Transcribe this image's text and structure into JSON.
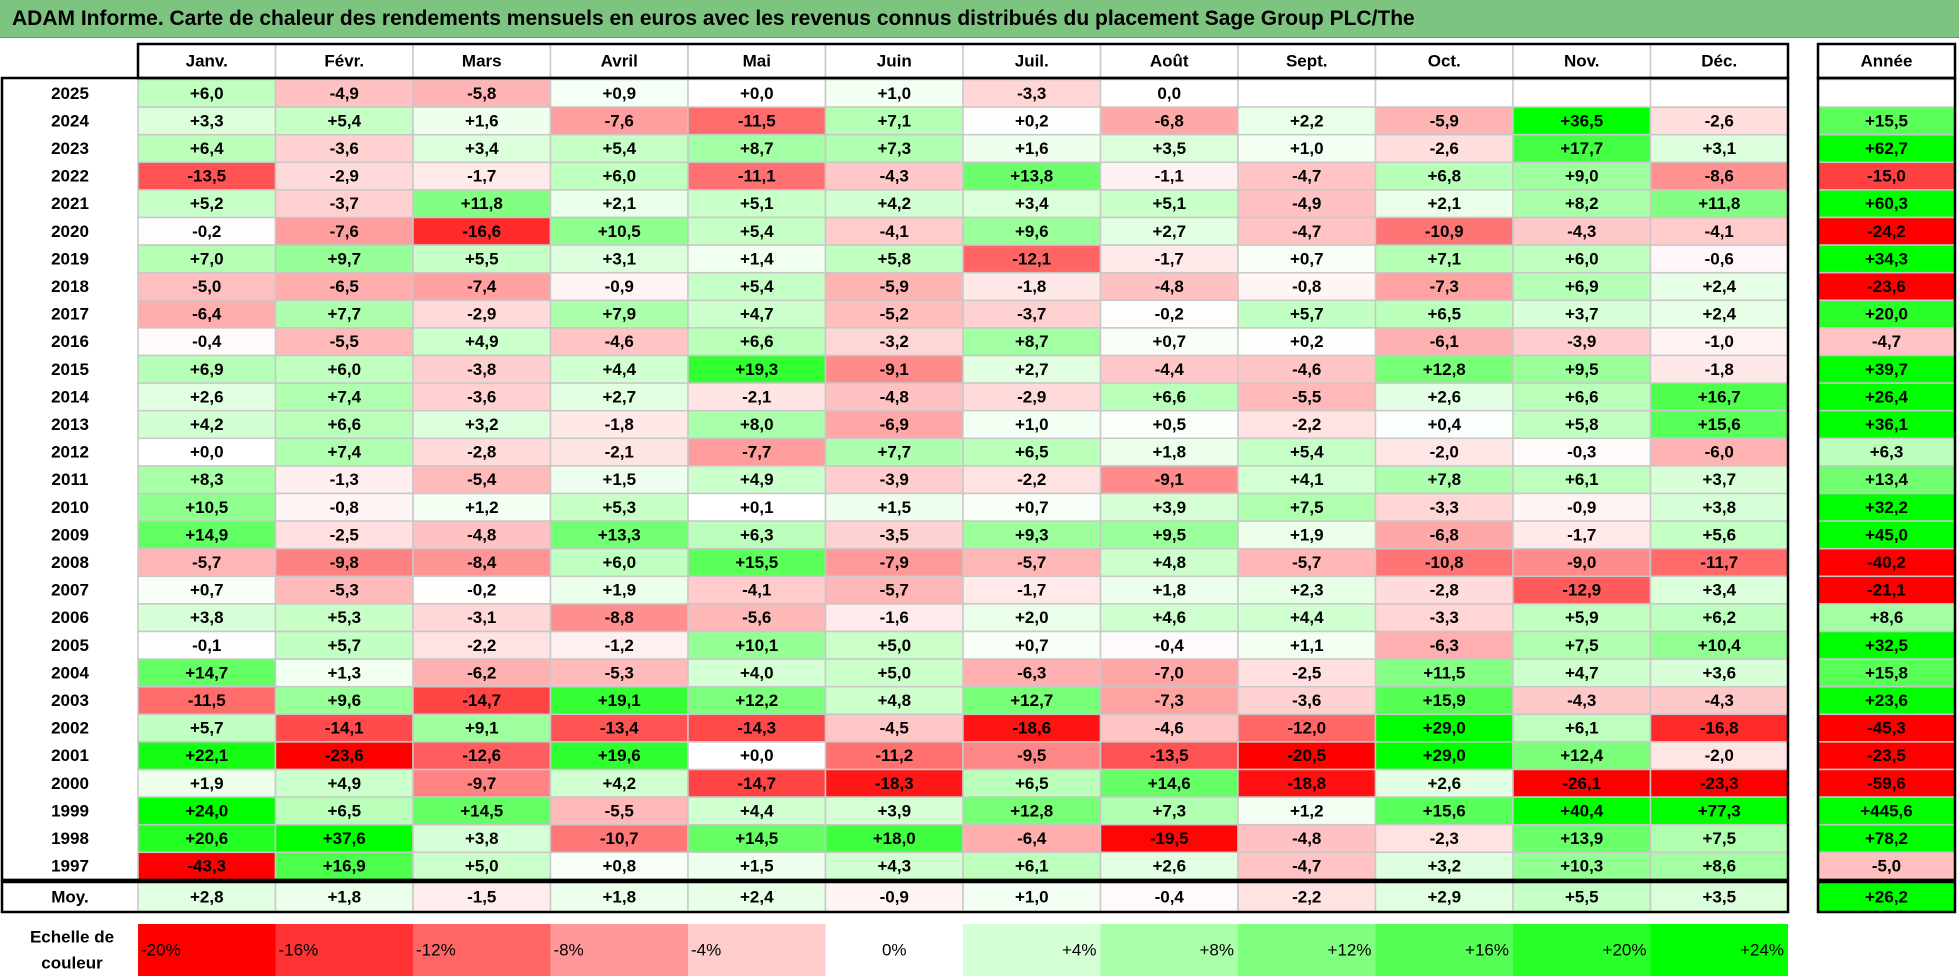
{
  "title": "ADAM Informe. Carte de chaleur des rendements mensuels en euros avec les revenus connus distribués du placement Sage Group PLC/The",
  "chart_data": {
    "type": "heatmap",
    "title": "ADAM Informe. Carte de chaleur des rendements mensuels en euros avec les revenus connus distribués du placement Sage Group PLC/The",
    "columns": [
      "Janv.",
      "Févr.",
      "Mars",
      "Avril",
      "Mai",
      "Juin",
      "Juil.",
      "Août",
      "Sept.",
      "Oct.",
      "Nov.",
      "Déc."
    ],
    "year_column_label": "Année",
    "rows": [
      {
        "year": "2025",
        "values": [
          6.0,
          -4.9,
          -5.8,
          0.9,
          0.0,
          1.0,
          -3.3,
          0.0,
          null,
          null,
          null,
          null
        ],
        "annual": null
      },
      {
        "year": "2024",
        "values": [
          3.3,
          5.4,
          1.6,
          -7.6,
          -11.5,
          7.1,
          0.2,
          -6.8,
          2.2,
          -5.9,
          36.5,
          -2.6
        ],
        "annual": 15.5
      },
      {
        "year": "2023",
        "values": [
          6.4,
          -3.6,
          3.4,
          5.4,
          8.7,
          7.3,
          1.6,
          3.5,
          1.0,
          -2.6,
          17.7,
          3.1
        ],
        "annual": 62.7
      },
      {
        "year": "2022",
        "values": [
          -13.5,
          -2.9,
          -1.7,
          6.0,
          -11.1,
          -4.3,
          13.8,
          -1.1,
          -4.7,
          6.8,
          9.0,
          -8.6
        ],
        "annual": -15.0
      },
      {
        "year": "2021",
        "values": [
          5.2,
          -3.7,
          11.8,
          2.1,
          5.1,
          4.2,
          3.4,
          5.1,
          -4.9,
          2.1,
          8.2,
          11.8
        ],
        "annual": 60.3
      },
      {
        "year": "2020",
        "values": [
          -0.2,
          -7.6,
          -16.6,
          10.5,
          5.4,
          -4.1,
          9.6,
          2.7,
          -4.7,
          -10.9,
          -4.3,
          -4.1
        ],
        "annual": -24.2
      },
      {
        "year": "2019",
        "values": [
          7.0,
          9.7,
          5.5,
          3.1,
          1.4,
          5.8,
          -12.1,
          -1.7,
          0.7,
          7.1,
          6.0,
          -0.6
        ],
        "annual": 34.3
      },
      {
        "year": "2018",
        "values": [
          -5.0,
          -6.5,
          -7.4,
          -0.9,
          5.4,
          -5.9,
          -1.8,
          -4.8,
          -0.8,
          -7.3,
          6.9,
          2.4
        ],
        "annual": -23.6
      },
      {
        "year": "2017",
        "values": [
          -6.4,
          7.7,
          -2.9,
          7.9,
          4.7,
          -5.2,
          -3.7,
          -0.2,
          5.7,
          6.5,
          3.7,
          2.4
        ],
        "annual": 20.0
      },
      {
        "year": "2016",
        "values": [
          -0.4,
          -5.5,
          4.9,
          -4.6,
          6.6,
          -3.2,
          8.7,
          0.7,
          0.2,
          -6.1,
          -3.9,
          -1.0
        ],
        "annual": -4.7
      },
      {
        "year": "2015",
        "values": [
          6.9,
          6.0,
          -3.8,
          4.4,
          19.3,
          -9.1,
          2.7,
          -4.4,
          -4.6,
          12.8,
          9.5,
          -1.8
        ],
        "annual": 39.7
      },
      {
        "year": "2014",
        "values": [
          2.6,
          7.4,
          -3.6,
          2.7,
          -2.1,
          -4.8,
          -2.9,
          6.6,
          -5.5,
          2.6,
          6.6,
          16.7
        ],
        "annual": 26.4
      },
      {
        "year": "2013",
        "values": [
          4.2,
          6.6,
          3.2,
          -1.8,
          8.0,
          -6.9,
          1.0,
          0.5,
          -2.2,
          0.4,
          5.8,
          15.6
        ],
        "annual": 36.1
      },
      {
        "year": "2012",
        "values": [
          0.0,
          7.4,
          -2.8,
          -2.1,
          -7.7,
          7.7,
          6.5,
          1.8,
          5.4,
          -2.0,
          -0.3,
          -6.0
        ],
        "annual": 6.3
      },
      {
        "year": "2011",
        "values": [
          8.3,
          -1.3,
          -5.4,
          1.5,
          4.9,
          -3.9,
          -2.2,
          -9.1,
          4.1,
          7.8,
          6.1,
          3.7
        ],
        "annual": 13.4
      },
      {
        "year": "2010",
        "values": [
          10.5,
          -0.8,
          1.2,
          5.3,
          0.1,
          1.5,
          0.7,
          3.9,
          7.5,
          -3.3,
          -0.9,
          3.8
        ],
        "annual": 32.2
      },
      {
        "year": "2009",
        "values": [
          14.9,
          -2.5,
          -4.8,
          13.3,
          6.3,
          -3.5,
          9.3,
          9.5,
          1.9,
          -6.8,
          -1.7,
          5.6
        ],
        "annual": 45.0
      },
      {
        "year": "2008",
        "values": [
          -5.7,
          -9.8,
          -8.4,
          6.0,
          15.5,
          -7.9,
          -5.7,
          4.8,
          -5.7,
          -10.8,
          -9.0,
          -11.7
        ],
        "annual": -40.2
      },
      {
        "year": "2007",
        "values": [
          0.7,
          -5.3,
          -0.2,
          1.9,
          -4.1,
          -5.7,
          -1.7,
          1.8,
          2.3,
          -2.8,
          -12.9,
          3.4
        ],
        "annual": -21.1
      },
      {
        "year": "2006",
        "values": [
          3.8,
          5.3,
          -3.1,
          -8.8,
          -5.6,
          -1.6,
          2.0,
          4.6,
          4.4,
          -3.3,
          5.9,
          6.2
        ],
        "annual": 8.6
      },
      {
        "year": "2005",
        "values": [
          -0.1,
          5.7,
          -2.2,
          -1.2,
          10.1,
          5.0,
          0.7,
          -0.4,
          1.1,
          -6.3,
          7.5,
          10.4
        ],
        "annual": 32.5
      },
      {
        "year": "2004",
        "values": [
          14.7,
          1.3,
          -6.2,
          -5.3,
          4.0,
          5.0,
          -6.3,
          -7.0,
          -2.5,
          11.5,
          4.7,
          3.6
        ],
        "annual": 15.8
      },
      {
        "year": "2003",
        "values": [
          -11.5,
          9.6,
          -14.7,
          19.1,
          12.2,
          4.8,
          12.7,
          -7.3,
          -3.6,
          15.9,
          -4.3,
          -4.3
        ],
        "annual": 23.6
      },
      {
        "year": "2002",
        "values": [
          5.7,
          -14.1,
          9.1,
          -13.4,
          -14.3,
          -4.5,
          -18.6,
          -4.6,
          -12.0,
          29.0,
          6.1,
          -16.8
        ],
        "annual": -45.3
      },
      {
        "year": "2001",
        "values": [
          22.1,
          -23.6,
          -12.6,
          19.6,
          0.0,
          -11.2,
          -9.5,
          -13.5,
          -20.5,
          29.0,
          12.4,
          -2.0
        ],
        "annual": -23.5
      },
      {
        "year": "2000",
        "values": [
          1.9,
          4.9,
          -9.7,
          4.2,
          -14.7,
          -18.3,
          6.5,
          14.6,
          -18.8,
          2.6,
          -26.1,
          -23.3
        ],
        "annual": -59.6
      },
      {
        "year": "1999",
        "values": [
          24.0,
          6.5,
          14.5,
          -5.5,
          4.4,
          3.9,
          12.8,
          7.3,
          1.2,
          15.6,
          40.4,
          77.3
        ],
        "annual": 445.6
      },
      {
        "year": "1998",
        "values": [
          20.6,
          37.6,
          3.8,
          -10.7,
          14.5,
          18.0,
          -6.4,
          -19.5,
          -4.8,
          -2.3,
          13.9,
          7.5
        ],
        "annual": 78.2
      },
      {
        "year": "1997",
        "values": [
          -43.3,
          16.9,
          5.0,
          0.8,
          1.5,
          4.3,
          6.1,
          2.6,
          -4.7,
          3.2,
          10.3,
          8.6
        ],
        "annual": -5.0
      }
    ],
    "special_labels": {
      "2025-Mai": "+0,0",
      "2025-Août": "0,0",
      "2012-Janv.": "+0,0",
      "2001-Mai": "+0,0"
    },
    "average": {
      "label": "Moy.",
      "values": [
        2.8,
        1.8,
        -1.5,
        1.8,
        2.4,
        -0.9,
        1.0,
        -0.4,
        -2.2,
        2.9,
        5.5,
        3.5
      ],
      "annual": 26.2
    },
    "color_scale": {
      "label": "Echelle de couleur",
      "stops": [
        "-20%",
        "-16%",
        "-12%",
        "-8%",
        "-4%",
        "0%",
        "+4%",
        "+8%",
        "+12%",
        "+16%",
        "+20%",
        "+24%"
      ],
      "stop_values": [
        -20,
        -16,
        -12,
        -8,
        -4,
        0,
        4,
        8,
        12,
        16,
        20,
        24
      ],
      "negative_color": "#ff0000",
      "neutral_color": "#ffffff",
      "positive_color": "#00ff00"
    }
  }
}
